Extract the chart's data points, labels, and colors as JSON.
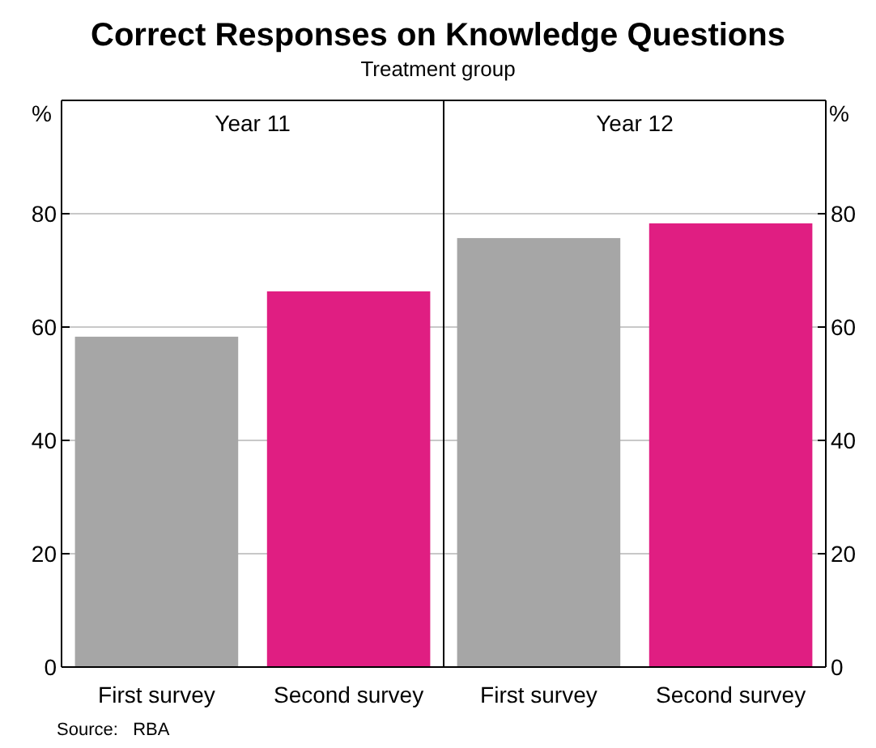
{
  "chart_data": [
    {
      "type": "bar",
      "title": "Correct Responses on Knowledge Questions",
      "subtitle": "Treatment group",
      "ylabel": "%",
      "annotations": [
        "Year 11",
        "Source:   RBA"
      ],
      "categories": [
        "First survey",
        "Second survey"
      ],
      "values": [
        58.3,
        66.3
      ],
      "colors": [
        "#a6a6a6",
        "#e01e82"
      ],
      "ylim": [
        0,
        100
      ],
      "yticks": [
        0,
        20,
        40,
        60,
        80
      ],
      "grid": "y"
    },
    {
      "type": "bar",
      "ylabel": "%",
      "annotations": [
        "Year 12"
      ],
      "categories": [
        "First survey",
        "Second survey"
      ],
      "values": [
        75.7,
        78.3
      ],
      "colors": [
        "#a6a6a6",
        "#e01e82"
      ],
      "ylim": [
        0,
        100
      ],
      "yticks": [
        0,
        20,
        40,
        60,
        80
      ],
      "grid": "y"
    }
  ]
}
